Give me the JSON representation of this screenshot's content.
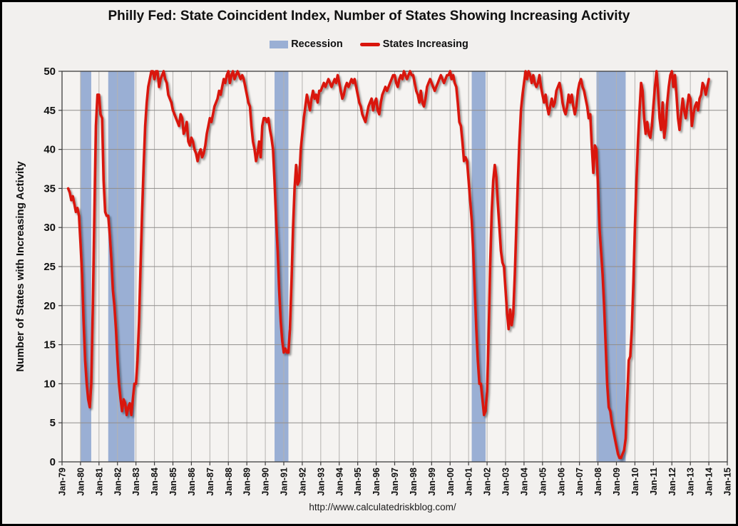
{
  "title": "Philly Fed: State Coincident Index, Number of States Showing Increasing Activity",
  "footer_url": "http://www.calculatedriskblog.com/",
  "legend": [
    {
      "label": "Recession",
      "type": "band"
    },
    {
      "label": "States Increasing",
      "type": "line"
    }
  ],
  "colors": {
    "background": "#f2f0ee",
    "plot_background": "#f5f3f1",
    "frame_border": "#000000",
    "axis_line": "#3f3f3f",
    "gridline_h": "#8f8d8b",
    "gridline_v": "#b4b2b0",
    "recession_band": "#9aafd4",
    "line": "#d9150c",
    "text": "#0f0f0f"
  },
  "chart_data": {
    "type": "line",
    "title": "Philly Fed: State Coincident Index, Number of States Showing Increasing Activity",
    "xlabel": "",
    "ylabel": "Number of States with Increasing Activity",
    "ylim": [
      0,
      50
    ],
    "y_ticks": [
      0,
      5,
      10,
      15,
      20,
      25,
      30,
      35,
      40,
      45,
      50
    ],
    "xlim": [
      1979,
      2015
    ],
    "x_tick_labels": [
      "Jan-79",
      "Jan-80",
      "Jan-81",
      "Jan-82",
      "Jan-83",
      "Jan-84",
      "Jan-85",
      "Jan-86",
      "Jan-87",
      "Jan-88",
      "Jan-89",
      "Jan-90",
      "Jan-91",
      "Jan-92",
      "Jan-93",
      "Jan-94",
      "Jan-95",
      "Jan-96",
      "Jan-97",
      "Jan-98",
      "Jan-99",
      "Jan-00",
      "Jan-01",
      "Jan-02",
      "Jan-03",
      "Jan-04",
      "Jan-05",
      "Jan-06",
      "Jan-07",
      "Jan-08",
      "Jan-09",
      "Jan-10",
      "Jan-11",
      "Jan-12",
      "Jan-13",
      "Jan-14",
      "Jan-15"
    ],
    "grid": true,
    "legend_position": "top",
    "recession_bands": [
      {
        "name": "1980 recession",
        "start": 1980.0,
        "end": 1980.58
      },
      {
        "name": "1981-82 recession",
        "start": 1981.5,
        "end": 1982.92
      },
      {
        "name": "1990-91 recession",
        "start": 1990.5,
        "end": 1991.25
      },
      {
        "name": "2001 recession",
        "start": 2001.17,
        "end": 2001.92
      },
      {
        "name": "2007-09 recession",
        "start": 2007.92,
        "end": 2009.5
      }
    ],
    "series": [
      {
        "name": "States Increasing",
        "frequency": "monthly",
        "start_year": 1979,
        "start_month": 5,
        "values": [
          35,
          34.5,
          33.5,
          34,
          33,
          32,
          32.5,
          31.5,
          28,
          24,
          18,
          13,
          10,
          8,
          7,
          10,
          20,
          32,
          43,
          47,
          47,
          44.5,
          44,
          36,
          32,
          31.5,
          31.5,
          29,
          26,
          22,
          20,
          17,
          13,
          10,
          8,
          6.5,
          8,
          7.5,
          6,
          7,
          7.5,
          6,
          8,
          10,
          10,
          13,
          18,
          25,
          32,
          38,
          43,
          46,
          48,
          49,
          50,
          50,
          49,
          50,
          50,
          48,
          49,
          49.5,
          50,
          49,
          48.5,
          47,
          46.5,
          46,
          45,
          44.5,
          44,
          43.5,
          43,
          44.5,
          44,
          42,
          42.5,
          43.5,
          41,
          40.5,
          41.5,
          41,
          40,
          39.5,
          38.5,
          39.5,
          40,
          39,
          39.5,
          40.5,
          42,
          43,
          44,
          43.5,
          44.5,
          45.5,
          46,
          46.5,
          47.5,
          47,
          48,
          49,
          48.5,
          49.5,
          50,
          48.5,
          49.5,
          50,
          49,
          49.5,
          50,
          49.5,
          49,
          49.5,
          49,
          48,
          47,
          46,
          45.5,
          43,
          41,
          40,
          38.5,
          39.5,
          41,
          39,
          43,
          44,
          44,
          43.5,
          44,
          42.5,
          41.5,
          40,
          36,
          31,
          27,
          22,
          18,
          15.5,
          14,
          14.5,
          14,
          14,
          17,
          23,
          30,
          35,
          38,
          35.5,
          36,
          40,
          42,
          44,
          45.5,
          47,
          46,
          45,
          46.5,
          47.5,
          46.5,
          47,
          46,
          47.5,
          47.5,
          48,
          48.5,
          48,
          48.5,
          49,
          48.5,
          48,
          48.5,
          49,
          48.5,
          49.5,
          48.5,
          47.5,
          46.5,
          47,
          48,
          48.5,
          48,
          48.5,
          49,
          48.5,
          49,
          48,
          47,
          46,
          45.5,
          44.5,
          44,
          43.5,
          44.5,
          45.5,
          46,
          46.5,
          45,
          46,
          46.5,
          45,
          44.5,
          46,
          47,
          47.5,
          48,
          47.5,
          48,
          48.5,
          49,
          49.5,
          49.5,
          48.5,
          48,
          49,
          49.5,
          49,
          50,
          49.5,
          49,
          49.5,
          50,
          49.5,
          49.5,
          48.5,
          47.5,
          47,
          46,
          47.5,
          46,
          45.5,
          46.5,
          48,
          48.5,
          49,
          48.5,
          48,
          47.5,
          48,
          48.5,
          49,
          49.5,
          49,
          48.5,
          49,
          49.5,
          49.5,
          50,
          49,
          49.5,
          48.5,
          48,
          46,
          43.5,
          43,
          41,
          38.5,
          39,
          38.5,
          36,
          33.5,
          31,
          27,
          22,
          17,
          13,
          10,
          10,
          8,
          6,
          6.5,
          9,
          16,
          25,
          32,
          36,
          38,
          36.5,
          33,
          30,
          27,
          25.5,
          25,
          22,
          19,
          17,
          19.5,
          17.5,
          19,
          24,
          30,
          36,
          41,
          45,
          47,
          48.5,
          50,
          49,
          50,
          49.5,
          48.5,
          49.5,
          48.5,
          48,
          48.5,
          49.5,
          48,
          47,
          46,
          47,
          45.5,
          44.5,
          45.5,
          46.5,
          45.5,
          46,
          47.5,
          48,
          48.5,
          47.5,
          46,
          45,
          44.5,
          45.5,
          47,
          46,
          47,
          45.5,
          44.5,
          45.5,
          47.5,
          48.5,
          49,
          48,
          47.5,
          46.5,
          45.5,
          44,
          44.5,
          40.5,
          37,
          40.5,
          40,
          35.5,
          30,
          27,
          24,
          20,
          15,
          10,
          7,
          6.5,
          5,
          4,
          3,
          2,
          1,
          0.5,
          0.5,
          1,
          1.5,
          3,
          8,
          13,
          13.5,
          17,
          23,
          30,
          36,
          41,
          45,
          48.5,
          47.5,
          44,
          42,
          43.5,
          42,
          41.5,
          43,
          45.5,
          48,
          50,
          47.5,
          44,
          42.5,
          46,
          41.5,
          43,
          46,
          48,
          49.5,
          50,
          48,
          49.5,
          47,
          44,
          42.5,
          44.5,
          46.5,
          45,
          44,
          45.5,
          47,
          46.5,
          43,
          44.5,
          45.5,
          46,
          45,
          46.5,
          47,
          48.5,
          48,
          47,
          48,
          49
        ]
      }
    ]
  }
}
